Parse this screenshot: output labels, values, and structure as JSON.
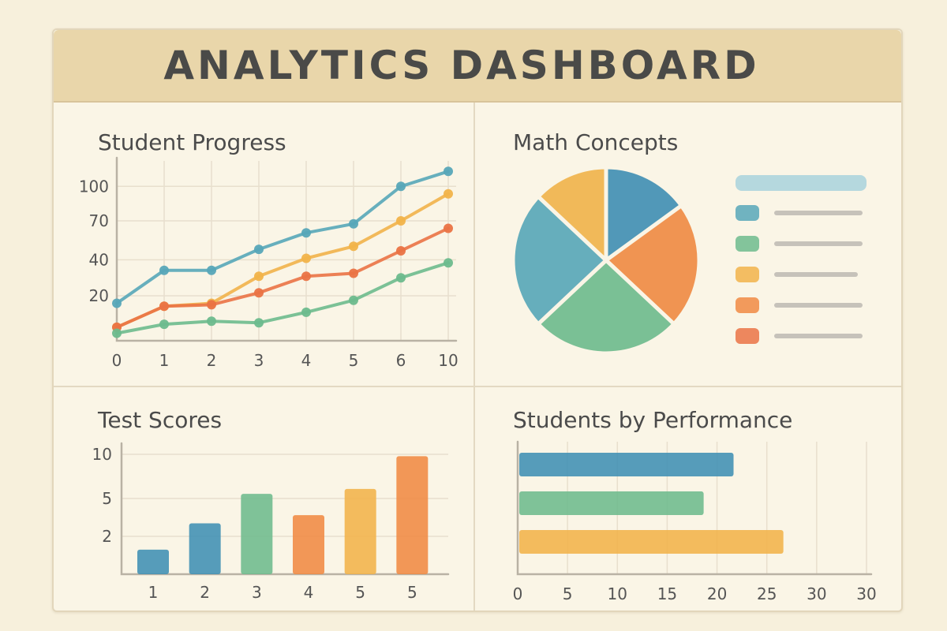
{
  "header": {
    "title": "ANALYTICS DASHBOARD"
  },
  "colors": {
    "blue": "#3f8fb4",
    "teal": "#57a7b8",
    "green": "#6dbb8d",
    "yellow": "#f1b34a",
    "orange": "#f08a43",
    "red_orange": "#ea7345",
    "legend_line": "#c6c2ba",
    "legend_bar": "#a8d2dc"
  },
  "panels": {
    "progress": {
      "title": "Student Progress"
    },
    "concepts": {
      "title": "Math Concepts"
    },
    "scores": {
      "title": "Test Scores"
    },
    "performance": {
      "title": "Students by Performance"
    }
  },
  "chart_data": [
    {
      "id": "student-progress",
      "type": "line",
      "title": "Student Progress",
      "x": [
        "0",
        "1",
        "2",
        "3",
        "4",
        "5",
        "6",
        "10"
      ],
      "y_ticks": [
        "20",
        "40",
        "70",
        "100"
      ],
      "series": [
        {
          "color": "#57a7b8",
          "values": [
            25,
            47,
            47,
            61,
            72,
            78,
            103,
            113
          ]
        },
        {
          "color": "#f1b34a",
          "values": [
            9,
            23,
            25,
            43,
            55,
            63,
            80,
            98
          ]
        },
        {
          "color": "#ea7345",
          "values": [
            9,
            23,
            24,
            32,
            43,
            45,
            60,
            75
          ]
        },
        {
          "color": "#6dbb8d",
          "values": [
            5,
            11,
            13,
            12,
            19,
            27,
            42,
            52
          ]
        }
      ]
    },
    {
      "id": "math-concepts",
      "type": "pie",
      "title": "Math Concepts",
      "slices": [
        {
          "value": 15,
          "color": "#3f8fb4"
        },
        {
          "value": 22,
          "color": "#f08a43"
        },
        {
          "value": 26,
          "color": "#6dbb8d"
        },
        {
          "value": 24,
          "color": "#57a7b8"
        },
        {
          "value": 13,
          "color": "#f1b34a"
        }
      ],
      "legend": [
        {
          "color": "#57a7b8"
        },
        {
          "color": "#6dbb8d"
        },
        {
          "color": "#f1b34a"
        },
        {
          "color": "#f08a43"
        },
        {
          "color": "#ea7345"
        }
      ]
    },
    {
      "id": "test-scores",
      "type": "bar",
      "title": "Test Scores",
      "categories": [
        "1",
        "2",
        "3",
        "4",
        "5",
        "5"
      ],
      "y_ticks": [
        "2",
        "5",
        "10"
      ],
      "values": [
        1.5,
        3.1,
        4.9,
        3.6,
        5.2,
        7.2
      ],
      "colors": [
        "#3f8fb4",
        "#3f8fb4",
        "#6dbb8d",
        "#f08a43",
        "#f1b34a",
        "#f08a43"
      ]
    },
    {
      "id": "students-by-performance",
      "type": "bar",
      "orientation": "horizontal",
      "title": "Students by Performance",
      "x_ticks": [
        "0",
        "5",
        "10",
        "15",
        "20",
        "25",
        "30",
        "30"
      ],
      "values": [
        21.5,
        18.5,
        26.5
      ],
      "colors": [
        "#3f8fb4",
        "#6dbb8d",
        "#f1b34a"
      ]
    }
  ]
}
